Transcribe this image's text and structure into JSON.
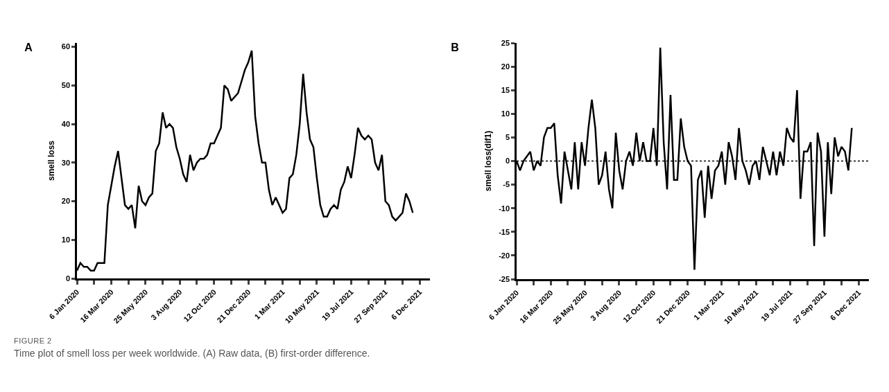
{
  "chart_data": [
    {
      "type": "line",
      "title": "A",
      "ylabel": "smell loss",
      "x": [
        "2020-01-06",
        "2020-01-13",
        "2020-01-20",
        "2020-01-27",
        "2020-02-03",
        "2020-02-10",
        "2020-02-17",
        "2020-02-24",
        "2020-03-02",
        "2020-03-09",
        "2020-03-16",
        "2020-03-23",
        "2020-03-30",
        "2020-04-06",
        "2020-04-13",
        "2020-04-20",
        "2020-04-27",
        "2020-05-04",
        "2020-05-11",
        "2020-05-18",
        "2020-05-25",
        "2020-06-01",
        "2020-06-08",
        "2020-06-15",
        "2020-06-22",
        "2020-06-29",
        "2020-07-06",
        "2020-07-13",
        "2020-07-20",
        "2020-07-27",
        "2020-08-03",
        "2020-08-10",
        "2020-08-17",
        "2020-08-24",
        "2020-08-31",
        "2020-09-07",
        "2020-09-14",
        "2020-09-21",
        "2020-09-28",
        "2020-10-05",
        "2020-10-12",
        "2020-10-19",
        "2020-10-26",
        "2020-11-02",
        "2020-11-09",
        "2020-11-16",
        "2020-11-23",
        "2020-11-30",
        "2020-12-07",
        "2020-12-14",
        "2020-12-21",
        "2020-12-28",
        "2021-01-04",
        "2021-01-11",
        "2021-01-18",
        "2021-01-25",
        "2021-02-01",
        "2021-02-08",
        "2021-02-15",
        "2021-02-22",
        "2021-03-01",
        "2021-03-08",
        "2021-03-15",
        "2021-03-22",
        "2021-03-29",
        "2021-04-05",
        "2021-04-12",
        "2021-04-19",
        "2021-04-26",
        "2021-05-03",
        "2021-05-10",
        "2021-05-17",
        "2021-05-24",
        "2021-05-31",
        "2021-06-07",
        "2021-06-14",
        "2021-06-21",
        "2021-06-28",
        "2021-07-05",
        "2021-07-12",
        "2021-07-19",
        "2021-07-26",
        "2021-08-02",
        "2021-08-09",
        "2021-08-16",
        "2021-08-23",
        "2021-08-30",
        "2021-09-06",
        "2021-09-13",
        "2021-09-20",
        "2021-09-27",
        "2021-10-04",
        "2021-10-11",
        "2021-10-18",
        "2021-10-25",
        "2021-11-01",
        "2021-11-08",
        "2021-11-15",
        "2021-11-22"
      ],
      "series": [
        {
          "color": "#000000",
          "values": [
            2,
            4,
            3,
            3,
            2,
            2,
            4,
            4,
            4,
            19,
            24,
            29,
            33,
            26,
            19,
            18,
            19,
            13,
            24,
            20,
            19,
            21,
            22,
            33,
            35,
            43,
            39,
            40,
            39,
            34,
            31,
            27,
            25,
            32,
            28,
            30,
            31,
            31,
            32,
            35,
            35,
            37,
            39,
            50,
            49,
            46,
            47,
            48,
            51,
            54,
            56,
            59,
            42,
            35,
            30,
            30,
            23,
            19,
            21,
            19,
            17,
            18,
            26,
            27,
            32,
            40,
            53,
            43,
            36,
            34,
            26,
            19,
            16,
            16,
            18,
            19,
            18,
            23,
            25,
            29,
            26,
            32,
            39,
            37,
            36,
            37,
            36,
            30,
            28,
            32,
            20,
            19,
            16,
            15,
            16,
            17,
            22,
            20,
            17
          ]
        }
      ],
      "xlim": [
        "2020-01-06",
        "2021-12-27"
      ],
      "xticks": [
        {
          "value": "2020-01-06",
          "label": "6 Jan 2020"
        },
        {
          "value": "2020-02-10",
          "label": null
        },
        {
          "value": "2020-03-16",
          "label": "16 Mar 2020"
        },
        {
          "value": "2020-04-20",
          "label": null
        },
        {
          "value": "2020-05-25",
          "label": "25 May 2020"
        },
        {
          "value": "2020-06-29",
          "label": null
        },
        {
          "value": "2020-08-03",
          "label": "3 Aug 2020"
        },
        {
          "value": "2020-09-07",
          "label": null
        },
        {
          "value": "2020-10-12",
          "label": "12 Oct 2020"
        },
        {
          "value": "2020-11-16",
          "label": null
        },
        {
          "value": "2020-12-21",
          "label": "21 Dec 2020"
        },
        {
          "value": "2021-01-25",
          "label": null
        },
        {
          "value": "2021-03-01",
          "label": "1 Mar 2021"
        },
        {
          "value": "2021-04-05",
          "label": null
        },
        {
          "value": "2021-05-10",
          "label": "10 May 2021"
        },
        {
          "value": "2021-06-14",
          "label": null
        },
        {
          "value": "2021-07-19",
          "label": "19 Jul 2021"
        },
        {
          "value": "2021-08-23",
          "label": null
        },
        {
          "value": "2021-09-27",
          "label": "27 Sep 2021"
        },
        {
          "value": "2021-11-01",
          "label": null
        },
        {
          "value": "2021-12-06",
          "label": "6 Dec 2021"
        }
      ],
      "ylim": [
        0,
        61
      ],
      "yticks": [
        0,
        10,
        20,
        30,
        40,
        50,
        60
      ],
      "annotations": [
        "FIGURE 2",
        "Time plot of smell loss per week worldwide. (A) Raw data, (B) first-order difference."
      ]
    },
    {
      "type": "line",
      "title": "B",
      "ylabel": "smell loss(dif1)",
      "x": [
        "2020-01-06",
        "2020-01-13",
        "2020-01-20",
        "2020-01-27",
        "2020-02-03",
        "2020-02-10",
        "2020-02-17",
        "2020-02-24",
        "2020-03-02",
        "2020-03-09",
        "2020-03-16",
        "2020-03-23",
        "2020-03-30",
        "2020-04-06",
        "2020-04-13",
        "2020-04-20",
        "2020-04-27",
        "2020-05-04",
        "2020-05-11",
        "2020-05-18",
        "2020-05-25",
        "2020-06-01",
        "2020-06-08",
        "2020-06-15",
        "2020-06-22",
        "2020-06-29",
        "2020-07-06",
        "2020-07-13",
        "2020-07-20",
        "2020-07-27",
        "2020-08-03",
        "2020-08-10",
        "2020-08-17",
        "2020-08-24",
        "2020-08-31",
        "2020-09-07",
        "2020-09-14",
        "2020-09-21",
        "2020-09-28",
        "2020-10-05",
        "2020-10-12",
        "2020-10-19",
        "2020-10-26",
        "2020-11-02",
        "2020-11-09",
        "2020-11-16",
        "2020-11-23",
        "2020-11-30",
        "2020-12-07",
        "2020-12-14",
        "2020-12-21",
        "2020-12-28",
        "2021-01-04",
        "2021-01-11",
        "2021-01-18",
        "2021-01-25",
        "2021-02-01",
        "2021-02-08",
        "2021-02-15",
        "2021-02-22",
        "2021-03-01",
        "2021-03-08",
        "2021-03-15",
        "2021-03-22",
        "2021-03-29",
        "2021-04-05",
        "2021-04-12",
        "2021-04-19",
        "2021-04-26",
        "2021-05-03",
        "2021-05-10",
        "2021-05-17",
        "2021-05-24",
        "2021-05-31",
        "2021-06-07",
        "2021-06-14",
        "2021-06-21",
        "2021-06-28",
        "2021-07-05",
        "2021-07-12",
        "2021-07-19",
        "2021-07-26",
        "2021-08-02",
        "2021-08-09",
        "2021-08-16",
        "2021-08-23",
        "2021-08-30",
        "2021-09-06",
        "2021-09-13",
        "2021-09-20",
        "2021-09-27",
        "2021-10-04",
        "2021-10-11",
        "2021-10-18",
        "2021-10-25",
        "2021-11-01",
        "2021-11-08",
        "2021-11-15",
        "2021-11-22"
      ],
      "series": [
        {
          "color": "#000000",
          "values": [
            0,
            -2,
            0,
            1,
            2,
            -2,
            0,
            -1,
            5,
            7,
            7,
            8,
            -3,
            -9,
            2,
            -2,
            -6,
            4,
            -6,
            4,
            -1,
            7,
            13,
            7,
            -5,
            -3,
            2,
            -6,
            -10,
            6,
            -2,
            -6,
            0,
            2,
            -1,
            6,
            0,
            4,
            0,
            0,
            7,
            -1,
            24,
            4,
            -6,
            14,
            -4,
            -4,
            9,
            3,
            0,
            -1,
            -23,
            -4,
            -2,
            -12,
            -1,
            -8,
            -2,
            -1,
            2,
            -5,
            4,
            1,
            -4,
            7,
            0,
            -2,
            -5,
            -1,
            0,
            -4,
            3,
            0,
            -3,
            2,
            -3,
            2,
            -1,
            7,
            5,
            4,
            15,
            -8,
            2,
            2,
            4,
            -18,
            6,
            2,
            -16,
            4,
            -7,
            5,
            1,
            3,
            2,
            -2,
            7
          ]
        }
      ],
      "xlim": [
        "2020-01-06",
        "2021-12-27"
      ],
      "xticks": [
        {
          "value": "2020-01-06",
          "label": "6 Jan 2020"
        },
        {
          "value": "2020-02-10",
          "label": null
        },
        {
          "value": "2020-03-16",
          "label": "16 Mar 2020"
        },
        {
          "value": "2020-04-20",
          "label": null
        },
        {
          "value": "2020-05-25",
          "label": "25 May 2020"
        },
        {
          "value": "2020-06-29",
          "label": null
        },
        {
          "value": "2020-08-03",
          "label": "3 Aug 2020"
        },
        {
          "value": "2020-09-07",
          "label": null
        },
        {
          "value": "2020-10-12",
          "label": "12 Oct 2020"
        },
        {
          "value": "2020-11-16",
          "label": null
        },
        {
          "value": "2020-12-21",
          "label": "21 Dec 2020"
        },
        {
          "value": "2021-01-25",
          "label": null
        },
        {
          "value": "2021-03-01",
          "label": "1 Mar 2021"
        },
        {
          "value": "2021-04-05",
          "label": null
        },
        {
          "value": "2021-05-10",
          "label": "10 May 2021"
        },
        {
          "value": "2021-06-14",
          "label": null
        },
        {
          "value": "2021-07-19",
          "label": "19 Jul 2021"
        },
        {
          "value": "2021-08-23",
          "label": null
        },
        {
          "value": "2021-09-27",
          "label": "27 Sep 2021"
        },
        {
          "value": "2021-11-01",
          "label": null
        },
        {
          "value": "2021-12-06",
          "label": "6 Dec 2021"
        }
      ],
      "ylim": [
        -25,
        25
      ],
      "yticks": [
        -25,
        -20,
        -15,
        -10,
        -5,
        0,
        5,
        10,
        15,
        20,
        25
      ],
      "ref_lines": [
        {
          "axis": "y",
          "value": 0,
          "color": "#000000",
          "line_style": "dotted"
        }
      ]
    }
  ]
}
